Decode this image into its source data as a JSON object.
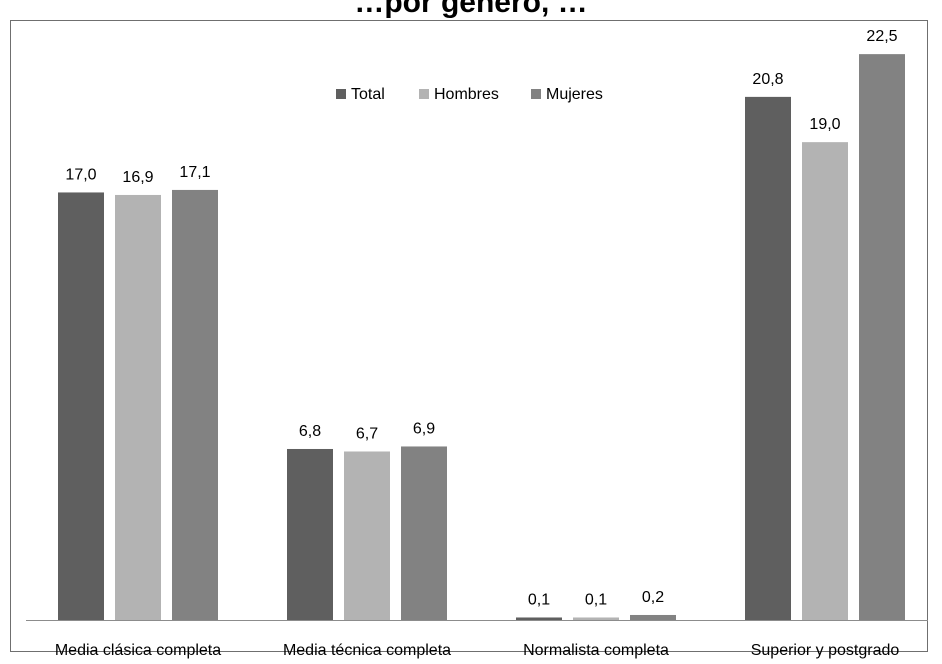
{
  "chart_data": {
    "type": "bar",
    "title": "...por género, ...",
    "xlabel": "",
    "ylabel": "",
    "categories": [
      "Media clásica completa",
      "Media técnica completa",
      "Normalista completa",
      "Superior y postgrado"
    ],
    "series": [
      {
        "name": "Total",
        "values": [
          17.0,
          6.8,
          0.1,
          20.8
        ],
        "labels": [
          "17,0",
          "6,8",
          "0,1",
          "20,8"
        ]
      },
      {
        "name": "Hombres",
        "values": [
          16.9,
          6.7,
          0.1,
          19.0
        ],
        "labels": [
          "16,9",
          "6,7",
          "0,1",
          "19,0"
        ]
      },
      {
        "name": "Mujeres",
        "values": [
          17.1,
          6.9,
          0.2,
          22.5
        ],
        "labels": [
          "17,1",
          "6,9",
          "0,2",
          "22,5"
        ]
      }
    ],
    "ylim": [
      0,
      25
    ],
    "grid": false,
    "legend": "top-center",
    "colors": {
      "Total": "#5f5f5f",
      "Hombres": "#b3b3b3",
      "Mujeres": "#828282"
    }
  }
}
